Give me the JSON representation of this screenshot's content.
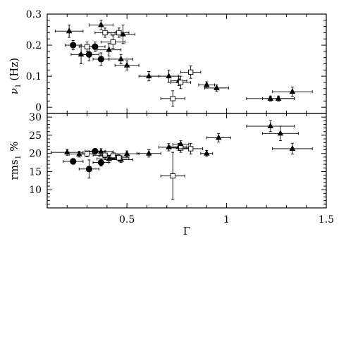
{
  "chart_data": [
    {
      "type": "scatter",
      "panel": "top",
      "ylabel_main": "ν",
      "ylabel_sub": "1",
      "ylabel_unit": "(Hz)",
      "xlim": [
        0.1,
        1.5
      ],
      "ylim": [
        -0.02,
        0.3
      ],
      "yticks": [
        "0",
        "0.1",
        "0.2",
        "0.3"
      ],
      "ytick_values": [
        0,
        0.1,
        0.2,
        0.3
      ],
      "series": [
        {
          "marker": "triangle",
          "points": [
            {
              "x": 0.21,
              "y": 0.245,
              "xerr": 0.07,
              "yerr": 0.02
            },
            {
              "x": 0.27,
              "y": 0.17,
              "xerr": 0.05,
              "yerr": 0.03
            },
            {
              "x": 0.37,
              "y": 0.265,
              "xerr": 0.06,
              "yerr": 0.015
            },
            {
              "x": 0.41,
              "y": 0.185,
              "xerr": 0.06,
              "yerr": 0.02
            },
            {
              "x": 0.47,
              "y": 0.155,
              "xerr": 0.06,
              "yerr": 0.015
            },
            {
              "x": 0.48,
              "y": 0.235,
              "xerr": 0.06,
              "yerr": 0.03
            },
            {
              "x": 0.5,
              "y": 0.135,
              "xerr": 0.06,
              "yerr": 0.015
            },
            {
              "x": 0.61,
              "y": 0.1,
              "xerr": 0.05,
              "yerr": 0.015
            },
            {
              "x": 0.71,
              "y": 0.1,
              "xerr": 0.05,
              "yerr": 0.02
            },
            {
              "x": 0.76,
              "y": 0.085,
              "xerr": 0.04,
              "yerr": 0.015
            },
            {
              "x": 0.9,
              "y": 0.072,
              "xerr": 0.04,
              "yerr": 0.01
            },
            {
              "x": 0.95,
              "y": 0.062,
              "xerr": 0.06,
              "yerr": 0.01
            },
            {
              "x": 1.22,
              "y": 0.028,
              "xerr": 0.12,
              "yerr": 0.008
            },
            {
              "x": 1.26,
              "y": 0.028,
              "xerr": 0.08,
              "yerr": 0.008
            },
            {
              "x": 1.33,
              "y": 0.05,
              "xerr": 0.1,
              "yerr": 0.015
            }
          ]
        },
        {
          "marker": "circle",
          "points": [
            {
              "x": 0.23,
              "y": 0.2,
              "xerr": 0.04,
              "yerr": 0.015
            },
            {
              "x": 0.31,
              "y": 0.17,
              "xerr": 0.05,
              "yerr": 0.02
            },
            {
              "x": 0.34,
              "y": 0.195,
              "xerr": 0.05,
              "yerr": 0.015
            },
            {
              "x": 0.37,
              "y": 0.155,
              "xerr": 0.04,
              "yerr": 0.02
            }
          ]
        },
        {
          "marker": "open-square",
          "points": [
            {
              "x": 0.3,
              "y": 0.195,
              "xerr": 0.04,
              "yerr": 0.015
            },
            {
              "x": 0.39,
              "y": 0.24,
              "xerr": 0.05,
              "yerr": 0.015
            },
            {
              "x": 0.43,
              "y": 0.21,
              "xerr": 0.06,
              "yerr": 0.02
            },
            {
              "x": 0.46,
              "y": 0.24,
              "xerr": 0.05,
              "yerr": 0.015
            },
            {
              "x": 0.73,
              "y": 0.028,
              "xerr": 0.06,
              "yerr": 0.025
            },
            {
              "x": 0.77,
              "y": 0.08,
              "xerr": 0.05,
              "yerr": 0.02
            },
            {
              "x": 0.82,
              "y": 0.113,
              "xerr": 0.05,
              "yerr": 0.02
            }
          ]
        }
      ]
    },
    {
      "type": "scatter",
      "panel": "bottom",
      "ylabel_main": "rms",
      "ylabel_sub": "1",
      "ylabel_unit": "%",
      "xlabel": "Γ",
      "xlim": [
        0.1,
        1.5
      ],
      "ylim": [
        5,
        31
      ],
      "yticks": [
        "10",
        "15",
        "20",
        "25",
        "30"
      ],
      "ytick_values": [
        10,
        15,
        20,
        25,
        30
      ],
      "xticks": [
        "0.5",
        "1",
        "1.5"
      ],
      "xtick_values": [
        0.5,
        1,
        1.5
      ],
      "series": [
        {
          "marker": "triangle",
          "points": [
            {
              "x": 0.2,
              "y": 20.3,
              "xerr": 0.08,
              "yerr": 0.8
            },
            {
              "x": 0.26,
              "y": 19.8,
              "xerr": 0.05,
              "yerr": 0.8
            },
            {
              "x": 0.37,
              "y": 20.5,
              "xerr": 0.06,
              "yerr": 0.8
            },
            {
              "x": 0.41,
              "y": 18.5,
              "xerr": 0.06,
              "yerr": 1.0
            },
            {
              "x": 0.47,
              "y": 18.3,
              "xerr": 0.06,
              "yerr": 0.8
            },
            {
              "x": 0.5,
              "y": 19.9,
              "xerr": 0.06,
              "yerr": 0.8
            },
            {
              "x": 0.61,
              "y": 20.0,
              "xerr": 0.06,
              "yerr": 1.0
            },
            {
              "x": 0.71,
              "y": 21.7,
              "xerr": 0.05,
              "yerr": 1.0
            },
            {
              "x": 0.76,
              "y": 21.8,
              "xerr": 0.04,
              "yerr": 1.0
            },
            {
              "x": 0.77,
              "y": 22.5,
              "xerr": 0.04,
              "yerr": 1.0
            },
            {
              "x": 0.9,
              "y": 20.0,
              "xerr": 0.03,
              "yerr": 0.8
            },
            {
              "x": 0.96,
              "y": 24.3,
              "xerr": 0.06,
              "yerr": 1.2
            },
            {
              "x": 1.22,
              "y": 27.5,
              "xerr": 0.12,
              "yerr": 1.5
            },
            {
              "x": 1.27,
              "y": 25.5,
              "xerr": 0.09,
              "yerr": 2.0
            },
            {
              "x": 1.33,
              "y": 21.3,
              "xerr": 0.1,
              "yerr": 1.5
            }
          ]
        },
        {
          "marker": "circle",
          "points": [
            {
              "x": 0.23,
              "y": 17.8,
              "xerr": 0.05,
              "yerr": 0.8
            },
            {
              "x": 0.31,
              "y": 15.7,
              "xerr": 0.05,
              "yerr": 2.5
            },
            {
              "x": 0.34,
              "y": 20.6,
              "xerr": 0.05,
              "yerr": 0.8
            },
            {
              "x": 0.37,
              "y": 17.5,
              "xerr": 0.04,
              "yerr": 1.0
            }
          ]
        },
        {
          "marker": "open-square",
          "points": [
            {
              "x": 0.3,
              "y": 19.9,
              "xerr": 0.04,
              "yerr": 0.8
            },
            {
              "x": 0.39,
              "y": 19.5,
              "xerr": 0.06,
              "yerr": 1.2
            },
            {
              "x": 0.43,
              "y": 19.3,
              "xerr": 0.07,
              "yerr": 1.0
            },
            {
              "x": 0.46,
              "y": 18.8,
              "xerr": 0.05,
              "yerr": 0.8
            },
            {
              "x": 0.73,
              "y": 13.8,
              "xerr": 0.06,
              "yerr": 6.5
            },
            {
              "x": 0.77,
              "y": 21.5,
              "xerr": 0.05,
              "yerr": 1.2
            },
            {
              "x": 0.82,
              "y": 21.3,
              "xerr": 0.06,
              "yerr": 1.5
            }
          ]
        }
      ]
    }
  ]
}
